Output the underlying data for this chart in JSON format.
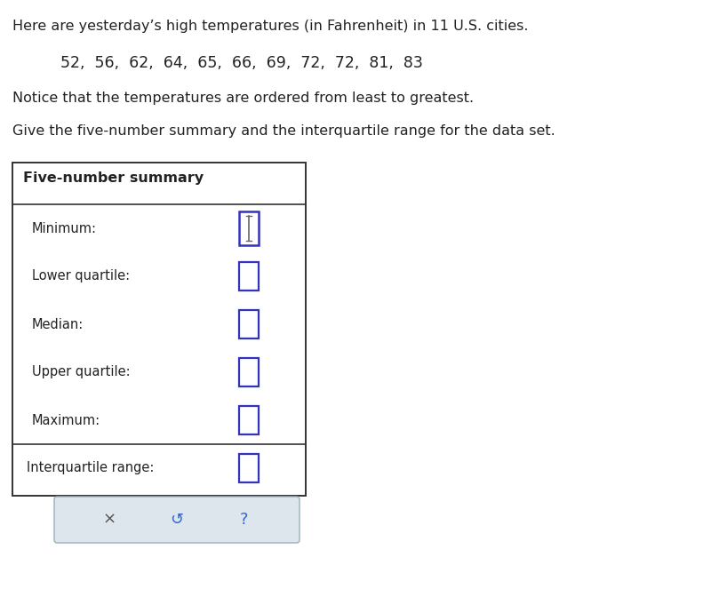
{
  "title_line1": "Here are yesterday’s high temperatures (in Fahrenheit) in 11 U.S. cities.",
  "data_line": "52,  56,  62,  64,  65,  66,  69,  72,  72,  81,  83",
  "notice_line": "Notice that the temperatures are ordered from least to greatest.",
  "give_line": "Give the five-number summary and the interquartile range for the data set.",
  "box_title": "Five-number summary",
  "labels": [
    "Minimum:",
    "Lower quartile:",
    "Median:",
    "Upper quartile:",
    "Maximum:"
  ],
  "iqr_label": "Interquartile range:",
  "bg_color": "#ffffff",
  "text_color": "#222222",
  "box_border_color": "#333333",
  "input_box_color": "#3333bb",
  "button_bg": "#dce6ec",
  "button_border": "#9ab0bc",
  "font_size_body": 11.5,
  "font_size_data": 12.5,
  "font_size_box_title": 11.5,
  "font_size_labels": 10.5,
  "font_size_btn": 13.0
}
